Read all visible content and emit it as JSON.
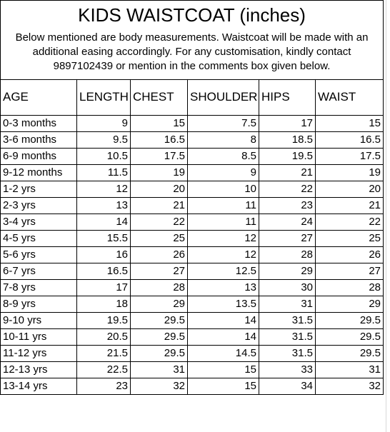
{
  "title": "KIDS WAISTCOAT (inches)",
  "notice": "Below mentioned are body measurements. Waistcoat will be made with an additional easing accordingly. For any customisation, kindly contact 9897102439 or mention in the comments box given below.",
  "columns": [
    "AGE",
    "LENGTH",
    "CHEST",
    "SHOULDER",
    "HIPS",
    "WAIST"
  ],
  "rows": [
    [
      "0-3 months",
      "9",
      "15",
      "7.5",
      "17",
      "15"
    ],
    [
      "3-6 months",
      "9.5",
      "16.5",
      "8",
      "18.5",
      "16.5"
    ],
    [
      "6-9 months",
      "10.5",
      "17.5",
      "8.5",
      "19.5",
      "17.5"
    ],
    [
      "9-12 months",
      "11.5",
      "19",
      "9",
      "21",
      "19"
    ],
    [
      "1-2 yrs",
      "12",
      "20",
      "10",
      "22",
      "20"
    ],
    [
      "2-3 yrs",
      "13",
      "21",
      "11",
      "23",
      "21"
    ],
    [
      "3-4 yrs",
      "14",
      "22",
      "11",
      "24",
      "22"
    ],
    [
      "4-5 yrs",
      "15.5",
      "25",
      "12",
      "27",
      "25"
    ],
    [
      "5-6 yrs",
      "16",
      "26",
      "12",
      "28",
      "26"
    ],
    [
      "6-7 yrs",
      "16.5",
      "27",
      "12.5",
      "29",
      "27"
    ],
    [
      "7-8 yrs",
      "17",
      "28",
      "13",
      "30",
      "28"
    ],
    [
      "8-9 yrs",
      "18",
      "29",
      "13.5",
      "31",
      "29"
    ],
    [
      "9-10 yrs",
      "19.5",
      "29.5",
      "14",
      "31.5",
      "29.5"
    ],
    [
      "10-11 yrs",
      "20.5",
      "29.5",
      "14",
      "31.5",
      "29.5"
    ],
    [
      "11-12 yrs",
      "21.5",
      "29.5",
      "14.5",
      "31.5",
      "29.5"
    ],
    [
      "12-13 yrs",
      "22.5",
      "31",
      "15",
      "33",
      "31"
    ],
    [
      "13-14 yrs",
      "23",
      "32",
      "15",
      "34",
      "32"
    ]
  ]
}
